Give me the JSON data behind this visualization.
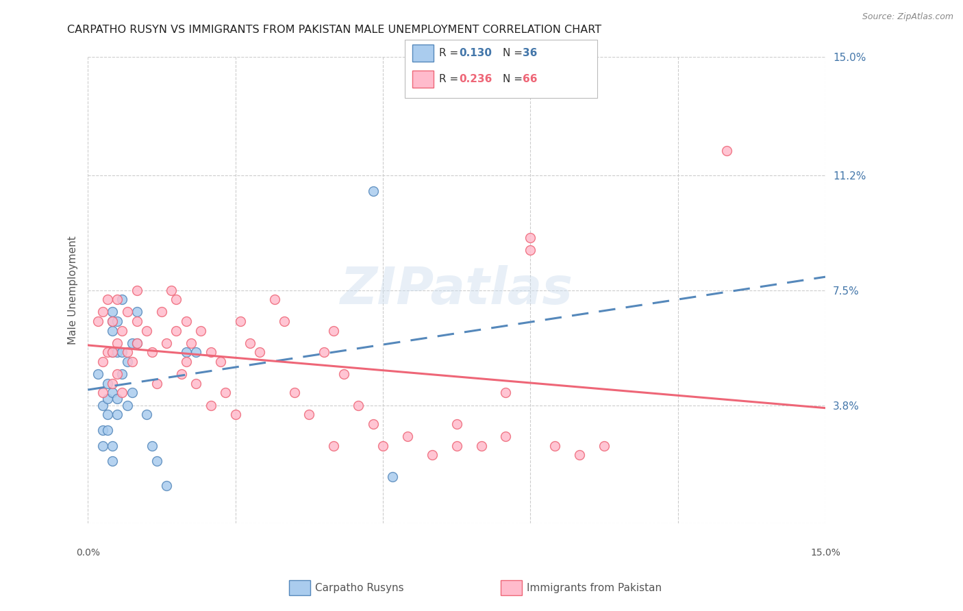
{
  "title": "CARPATHO RUSYN VS IMMIGRANTS FROM PAKISTAN MALE UNEMPLOYMENT CORRELATION CHART",
  "source": "Source: ZipAtlas.com",
  "ylabel": "Male Unemployment",
  "xlim": [
    0.0,
    0.15
  ],
  "ylim": [
    0.0,
    0.15
  ],
  "ytick_positions": [
    0.0,
    0.038,
    0.075,
    0.112,
    0.15
  ],
  "xtick_positions": [
    0.0,
    0.03,
    0.06,
    0.09,
    0.12,
    0.15
  ],
  "right_ytick_labels": [
    "15.0%",
    "11.2%",
    "7.5%",
    "3.8%"
  ],
  "right_ytick_values": [
    0.15,
    0.112,
    0.075,
    0.038
  ],
  "color_blue": "#5588BB",
  "color_pink": "#EE6677",
  "color_blue_light": "#AACCEE",
  "color_pink_light": "#FFBBCC",
  "color_axis_blue": "#4477AA",
  "color_text": "#555555",
  "grid_color": "#CCCCCC",
  "series1_label": "Carpatho Rusyns",
  "series2_label": "Immigrants from Pakistan",
  "legend_R1": "0.130",
  "legend_N1": "36",
  "legend_R2": "0.236",
  "legend_N2": "66",
  "blue_scatter_x": [
    0.002,
    0.003,
    0.003,
    0.003,
    0.004,
    0.004,
    0.004,
    0.004,
    0.005,
    0.005,
    0.005,
    0.005,
    0.005,
    0.005,
    0.005,
    0.006,
    0.006,
    0.006,
    0.006,
    0.007,
    0.007,
    0.007,
    0.008,
    0.008,
    0.009,
    0.009,
    0.01,
    0.01,
    0.012,
    0.013,
    0.014,
    0.016,
    0.02,
    0.022,
    0.058,
    0.062
  ],
  "blue_scatter_y": [
    0.048,
    0.025,
    0.03,
    0.038,
    0.03,
    0.035,
    0.04,
    0.045,
    0.02,
    0.025,
    0.042,
    0.055,
    0.062,
    0.065,
    0.068,
    0.035,
    0.04,
    0.055,
    0.065,
    0.048,
    0.055,
    0.072,
    0.038,
    0.052,
    0.042,
    0.058,
    0.058,
    0.068,
    0.035,
    0.025,
    0.02,
    0.012,
    0.055,
    0.055,
    0.107,
    0.015
  ],
  "pink_scatter_x": [
    0.002,
    0.003,
    0.003,
    0.003,
    0.004,
    0.004,
    0.005,
    0.005,
    0.005,
    0.006,
    0.006,
    0.006,
    0.007,
    0.007,
    0.008,
    0.008,
    0.009,
    0.01,
    0.01,
    0.01,
    0.012,
    0.013,
    0.014,
    0.015,
    0.016,
    0.017,
    0.018,
    0.018,
    0.019,
    0.02,
    0.02,
    0.021,
    0.022,
    0.023,
    0.025,
    0.025,
    0.027,
    0.028,
    0.03,
    0.031,
    0.033,
    0.035,
    0.038,
    0.04,
    0.042,
    0.045,
    0.048,
    0.05,
    0.052,
    0.055,
    0.058,
    0.06,
    0.065,
    0.07,
    0.075,
    0.08,
    0.085,
    0.09,
    0.09,
    0.095,
    0.1,
    0.105,
    0.075,
    0.05,
    0.085,
    0.13
  ],
  "pink_scatter_y": [
    0.065,
    0.042,
    0.052,
    0.068,
    0.055,
    0.072,
    0.045,
    0.055,
    0.065,
    0.048,
    0.058,
    0.072,
    0.042,
    0.062,
    0.055,
    0.068,
    0.052,
    0.058,
    0.065,
    0.075,
    0.062,
    0.055,
    0.045,
    0.068,
    0.058,
    0.075,
    0.062,
    0.072,
    0.048,
    0.052,
    0.065,
    0.058,
    0.045,
    0.062,
    0.038,
    0.055,
    0.052,
    0.042,
    0.035,
    0.065,
    0.058,
    0.055,
    0.072,
    0.065,
    0.042,
    0.035,
    0.055,
    0.062,
    0.048,
    0.038,
    0.032,
    0.025,
    0.028,
    0.022,
    0.032,
    0.025,
    0.042,
    0.092,
    0.088,
    0.025,
    0.022,
    0.025,
    0.025,
    0.025,
    0.028,
    0.12
  ]
}
